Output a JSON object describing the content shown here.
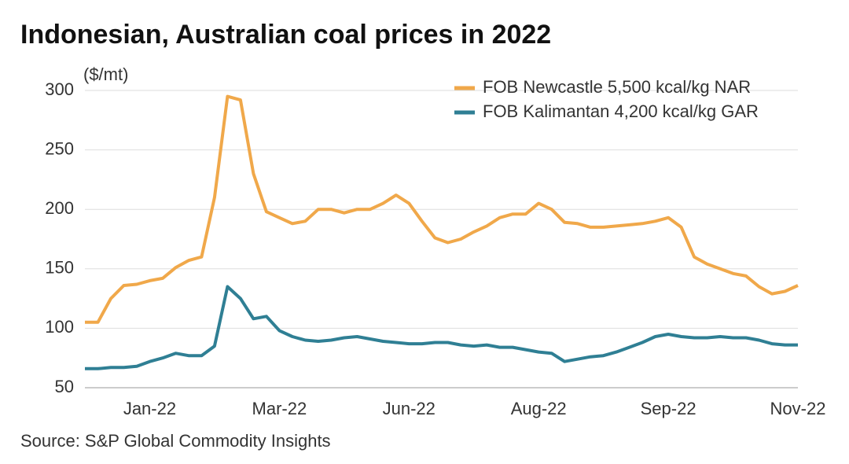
{
  "chart_data": {
    "type": "line",
    "title": "Indonesian, Australian coal prices in 2022",
    "y_axis_label": "($/mt)",
    "source": "Source: S&P Global Commodity Insights",
    "categories": [
      null,
      null,
      null,
      null,
      null,
      "Jan-22",
      null,
      null,
      null,
      null,
      null,
      null,
      null,
      null,
      null,
      "Mar-22",
      null,
      null,
      null,
      null,
      null,
      null,
      null,
      null,
      null,
      "Jun-22",
      null,
      null,
      null,
      null,
      null,
      null,
      null,
      null,
      null,
      "Aug-22",
      null,
      null,
      null,
      null,
      null,
      null,
      null,
      null,
      null,
      "Sep-22",
      null,
      null,
      null,
      null,
      null,
      null,
      null,
      null,
      null,
      "Nov-22"
    ],
    "series": [
      {
        "name": "FOB Newcastle 5,500 kcal/kg NAR",
        "color": "#f0a84a",
        "values": [
          105,
          105,
          125,
          136,
          137,
          140,
          142,
          151,
          157,
          160,
          210,
          295,
          292,
          230,
          198,
          193,
          188,
          190,
          200,
          200,
          197,
          200,
          200,
          205,
          212,
          205,
          190,
          176,
          172,
          175,
          181,
          186,
          193,
          196,
          196,
          205,
          200,
          189,
          188,
          185,
          185,
          186,
          187,
          188,
          190,
          193,
          185,
          160,
          154,
          150,
          146,
          144,
          135,
          129,
          131,
          136
        ]
      },
      {
        "name": "FOB Kalimantan 4,200 kcal/kg GAR",
        "color": "#2f7f94",
        "values": [
          66,
          66,
          67,
          67,
          68,
          72,
          75,
          79,
          77,
          77,
          85,
          135,
          125,
          108,
          110,
          98,
          93,
          90,
          89,
          90,
          92,
          93,
          91,
          89,
          88,
          87,
          87,
          88,
          88,
          86,
          85,
          86,
          84,
          84,
          82,
          80,
          79,
          72,
          74,
          76,
          77,
          80,
          84,
          88,
          93,
          95,
          93,
          92,
          92,
          93,
          92,
          92,
          90,
          87,
          86,
          86
        ]
      }
    ],
    "ylim": [
      50,
      300
    ],
    "yticks": [
      50,
      100,
      150,
      200,
      250,
      300
    ],
    "grid": true,
    "legend": "top-right"
  }
}
